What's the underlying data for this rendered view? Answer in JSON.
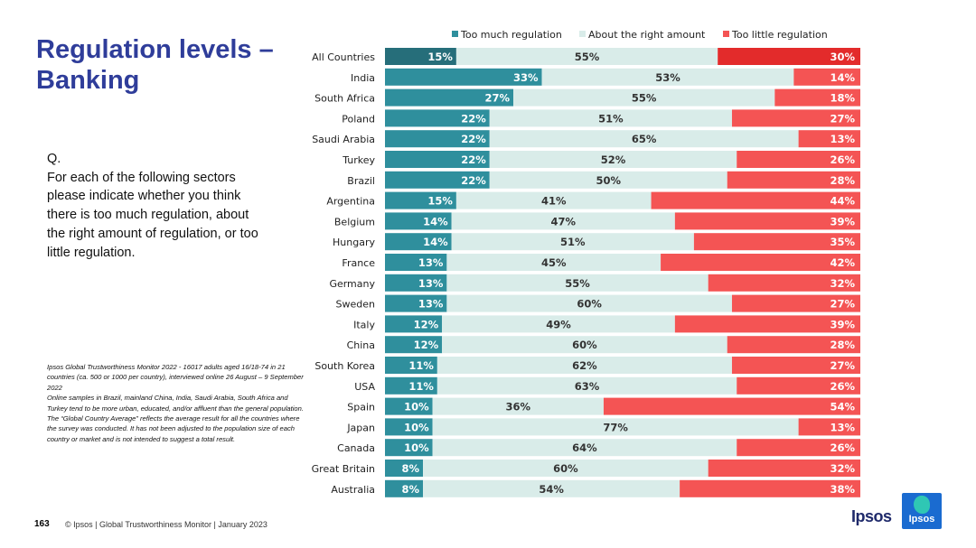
{
  "page": {
    "title": "Regulation levels – Banking",
    "question": {
      "label": "Q.",
      "text": "For each of the following sectors please indicate whether you think there is too much regulation, about the right amount of regulation, or too little regulation."
    },
    "notes": [
      "Ipsos Global Trustworthiness Monitor 2022 - 16017 adults aged 16/18-74 in 21 countries (ca. 500 or 1000 per country), interviewed online 26 August – 9 September 2022",
      "Online samples in Brazil, mainland China, India, Saudi Arabia, South Africa and Turkey tend to be more urban, educated, and/or affluent than the general population.",
      "The “Global Country Average” reflects the average result for all the countries where the survey was conducted. It has not been adjusted to the population size of each country or market and is not intended to suggest a total result."
    ],
    "page_number": "163",
    "footer": "© Ipsos | Global Trustworthiness Monitor | January 2023",
    "logo_text": "Ipsos",
    "badge_text": "Ipsos"
  },
  "colors": {
    "too_much": "#2f8f9d",
    "too_much_highlight": "#266e7a",
    "about_right": "#d9ece9",
    "too_little": "#f45454",
    "too_little_highlight": "#e32b2b",
    "title": "#2f3d9a"
  },
  "chart_data": {
    "type": "bar",
    "orientation": "horizontal",
    "stacked": true,
    "unit": "%",
    "legend_position": "top",
    "categories": [
      "All Countries",
      "India",
      "South Africa",
      "Poland",
      "Saudi Arabia",
      "Turkey",
      "Brazil",
      "Argentina",
      "Belgium",
      "Hungary",
      "France",
      "Germany",
      "Sweden",
      "Italy",
      "China",
      "South Korea",
      "USA",
      "Spain",
      "Japan",
      "Canada",
      "Great Britain",
      "Australia"
    ],
    "series": [
      {
        "name": "Too much regulation",
        "values": [
          15,
          33,
          27,
          22,
          22,
          22,
          22,
          15,
          14,
          14,
          13,
          13,
          13,
          12,
          12,
          11,
          11,
          10,
          10,
          10,
          8,
          8
        ]
      },
      {
        "name": "About the right amount",
        "values": [
          55,
          53,
          55,
          51,
          65,
          52,
          50,
          41,
          47,
          51,
          45,
          55,
          60,
          49,
          60,
          62,
          63,
          36,
          77,
          64,
          60,
          54
        ]
      },
      {
        "name": "Too little regulation",
        "values": [
          30,
          14,
          18,
          27,
          13,
          26,
          28,
          44,
          39,
          35,
          42,
          32,
          27,
          39,
          28,
          27,
          26,
          54,
          13,
          26,
          32,
          38
        ]
      }
    ],
    "highlight_category": "All Countries"
  }
}
